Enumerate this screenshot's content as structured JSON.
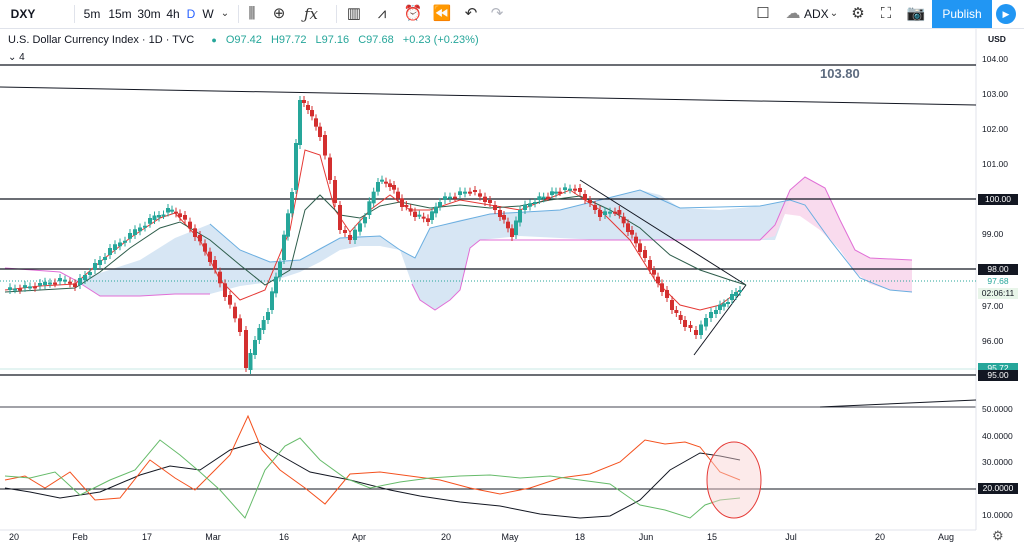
{
  "toolbar": {
    "symbol": "DXY",
    "intervals": [
      "5m",
      "15m",
      "30m",
      "4h",
      "D",
      "W"
    ],
    "active_interval": "D",
    "compare_indicator": "ADX",
    "publish_label": "Publish",
    "icons": [
      "candles-icon",
      "add-icon",
      "fx-icon",
      "indicators-icon",
      "alert-icon",
      "replay-icon",
      "undo-icon",
      "redo-icon",
      "layout-icon",
      "settings-icon",
      "fullscreen-icon",
      "camera-icon",
      "play-icon"
    ]
  },
  "legend": {
    "title": "U.S. Dollar Currency Index · 1D · TVC",
    "open": "O97.42",
    "high": "H97.72",
    "low": "L97.16",
    "close": "C97.68",
    "change": "+0.23 (+0.23%)",
    "collapsed_count": "4"
  },
  "annotation": {
    "level_label": "103.80"
  },
  "price_axis": {
    "currency": "USD",
    "ticks": [
      "104.00",
      "103.00",
      "102.00",
      "101.00",
      "100.00",
      "99.00",
      "98.00",
      "97.00",
      "96.00",
      "95.00"
    ],
    "labels": [
      {
        "text": "100.00",
        "bg": "#131722",
        "fg": "#ffffff"
      },
      {
        "text": "98.00",
        "bg": "#131722",
        "fg": "#ffffff"
      },
      {
        "text": "97.68",
        "bg": "#ffffff",
        "fg": "#26a69a"
      },
      {
        "text": "02:06:11",
        "bg": "#e8f5e9",
        "fg": "#131722"
      },
      {
        "text": "95.72",
        "bg": "#26a69a",
        "fg": "#ffffff"
      },
      {
        "text": "95.00",
        "bg": "#131722",
        "fg": "#ffffff"
      }
    ]
  },
  "adx_axis": {
    "ticks": [
      "50.0000",
      "40.0000",
      "30.0000",
      "20.0000",
      "10.0000"
    ],
    "label": {
      "text": "20.0000",
      "bg": "#131722",
      "fg": "#ffffff"
    }
  },
  "time_axis": {
    "labels": [
      "20",
      "Feb",
      "17",
      "Mar",
      "16",
      "Apr",
      "20",
      "May",
      "18",
      "Jun",
      "15",
      "Jul",
      "20",
      "Aug"
    ]
  },
  "colors": {
    "up": "#26a69a",
    "down": "#d32f2f",
    "accent": "#2196f3",
    "cloud_bull": "#c9def0",
    "cloud_bear": "#f8d7ec"
  }
}
